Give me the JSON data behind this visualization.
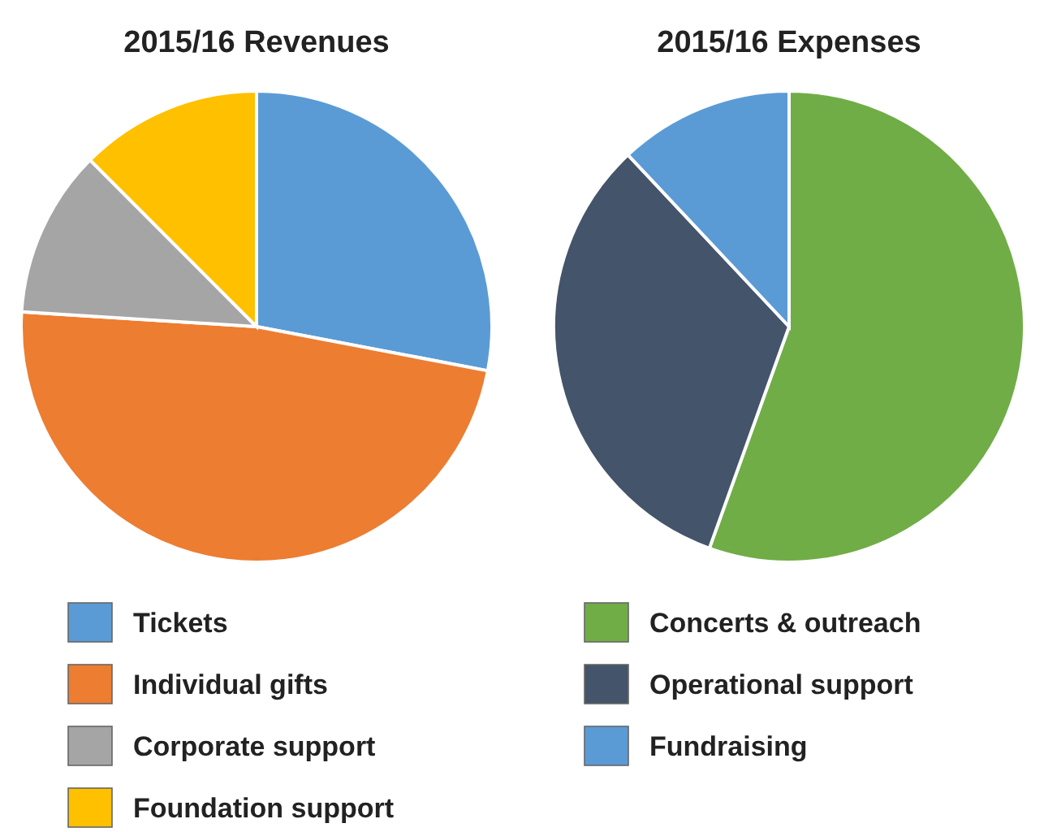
{
  "chart_data": [
    {
      "type": "pie",
      "title": "2015/16 Revenues",
      "categories": [
        "Tickets",
        "Individual gifts",
        "Corporate support",
        "Foundation support"
      ],
      "values": [
        28,
        48,
        11.5,
        12.5
      ],
      "colors": [
        "#5b9bd5",
        "#ed7d31",
        "#a5a5a5",
        "#ffc000"
      ],
      "legend": "bottom"
    },
    {
      "type": "pie",
      "title": "2015/16 Expenses",
      "categories": [
        "Concerts & outreach",
        "Operational support",
        "Fundraising"
      ],
      "values": [
        55.5,
        32.5,
        12
      ],
      "colors": [
        "#70ad47",
        "#44546a",
        "#5b9bd5"
      ],
      "legend": "bottom"
    }
  ]
}
